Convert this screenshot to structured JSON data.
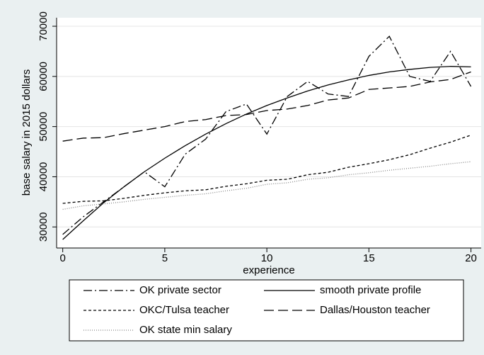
{
  "chart_data": {
    "type": "line",
    "y_label": "base salary in 2015 dollars",
    "x_label": "experience",
    "x": [
      0,
      1,
      2,
      3,
      4,
      5,
      6,
      7,
      8,
      9,
      10,
      11,
      12,
      13,
      14,
      15,
      16,
      17,
      18,
      19,
      20
    ],
    "series": [
      {
        "name": "OK private sector",
        "color": "#000000",
        "style": "dash-dot",
        "values": [
          28500,
          32000,
          35000,
          38000,
          41000,
          38000,
          44500,
          47500,
          53000,
          54500,
          48500,
          56000,
          59000,
          56500,
          56000,
          64000,
          68000,
          60000,
          59000,
          65000,
          58000
        ]
      },
      {
        "name": "smooth private profile",
        "color": "#000000",
        "style": "solid",
        "values": [
          27500,
          31200,
          34800,
          38000,
          41000,
          43700,
          46200,
          48500,
          50600,
          52500,
          54200,
          55700,
          57100,
          58300,
          59300,
          60200,
          60900,
          61400,
          61800,
          62000,
          61900
        ]
      },
      {
        "name": "OKC/Tulsa teacher",
        "color": "#000000",
        "style": "short-dash",
        "values": [
          34700,
          35100,
          35200,
          35700,
          36300,
          36800,
          37200,
          37400,
          38100,
          38600,
          39300,
          39500,
          40400,
          40900,
          41900,
          42600,
          43400,
          44400,
          45700,
          46900,
          48300
        ]
      },
      {
        "name": "Dallas/Houston teacher",
        "color": "#000000",
        "style": "long-dash",
        "values": [
          47100,
          47700,
          47800,
          48600,
          49300,
          50000,
          51000,
          51400,
          52200,
          52400,
          53200,
          53500,
          54200,
          55300,
          55700,
          57400,
          57700,
          58000,
          58900,
          59400,
          60900
        ]
      },
      {
        "name": "OK state min salary",
        "color": "#888888",
        "style": "dot",
        "values": [
          33500,
          34200,
          34600,
          35000,
          35500,
          35900,
          36300,
          36600,
          37200,
          37700,
          38500,
          38800,
          39500,
          39800,
          40400,
          40800,
          41300,
          41700,
          42100,
          42600,
          43000
        ]
      }
    ],
    "xlim": [
      -0.3,
      20.5
    ],
    "xticks": [
      0,
      5,
      10,
      15,
      20
    ],
    "ylim": [
      25800,
      71700
    ],
    "yticks": [
      30000,
      40000,
      50000,
      60000,
      70000
    ],
    "grid": true,
    "legend": "bottom"
  }
}
